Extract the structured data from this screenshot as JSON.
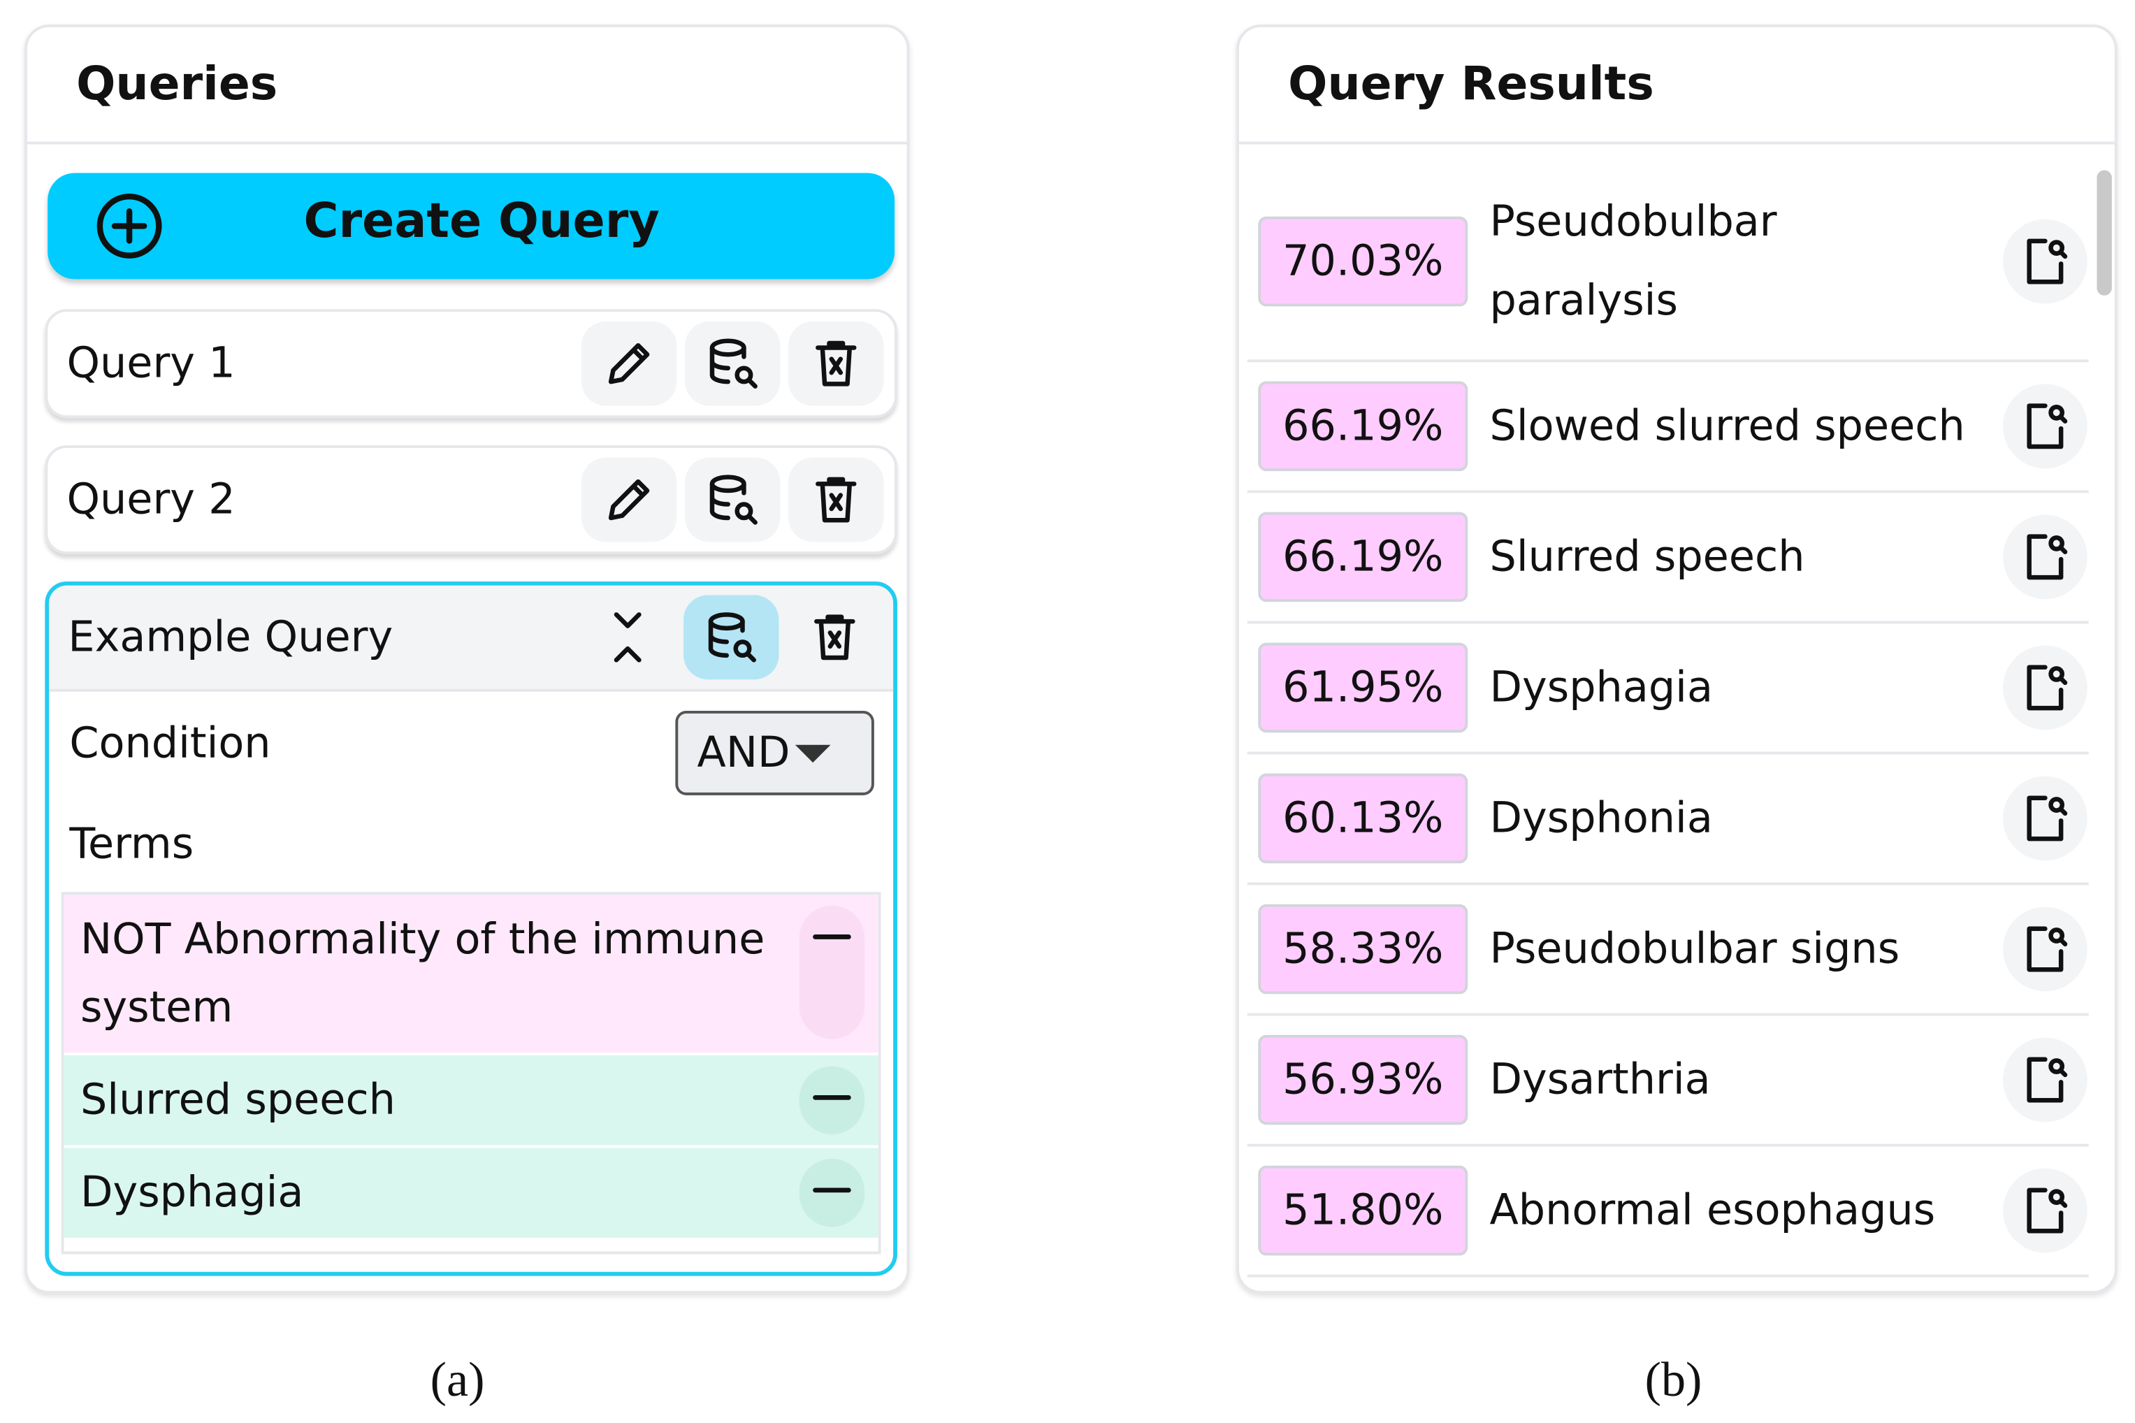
{
  "queries_panel": {
    "title": "Queries",
    "create_button": "Create Query",
    "queries": [
      {
        "name": "Query 1"
      },
      {
        "name": "Query 2"
      }
    ],
    "expanded_query": {
      "name": "Example Query",
      "condition_label": "Condition",
      "condition_value": "AND",
      "terms_label": "Terms",
      "terms": [
        "NOT Abnormality of the immune system",
        "Slurred speech",
        "Dysphagia"
      ]
    }
  },
  "results_panel": {
    "title": "Query Results",
    "results": [
      {
        "score": "70.03%",
        "term": "Pseudobulbar paralysis"
      },
      {
        "score": "66.19%",
        "term": "Slowed slurred speech"
      },
      {
        "score": "66.19%",
        "term": "Slurred speech"
      },
      {
        "score": "61.95%",
        "term": "Dysphagia"
      },
      {
        "score": "60.13%",
        "term": "Dysphonia"
      },
      {
        "score": "58.33%",
        "term": "Pseudobulbar signs"
      },
      {
        "score": "56.93%",
        "term": "Dysarthria"
      },
      {
        "score": "51.80%",
        "term": "Abnormal esophagus"
      }
    ]
  },
  "captions": [
    "(a)",
    "(b)"
  ]
}
